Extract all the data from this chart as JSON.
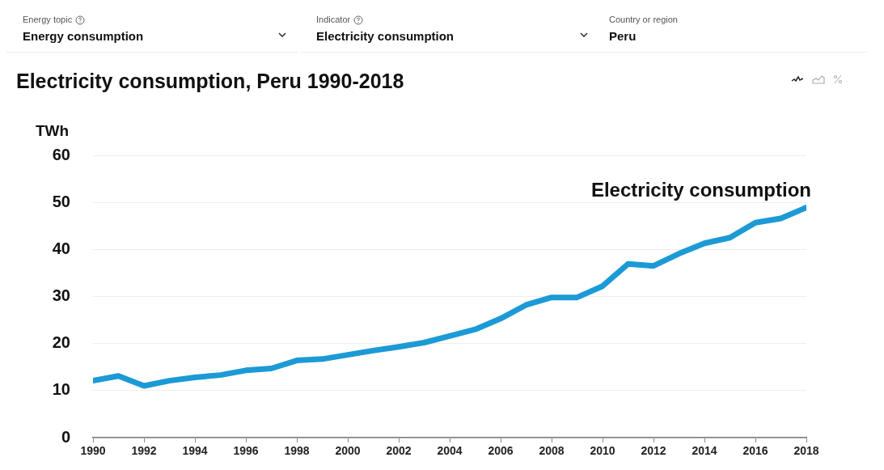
{
  "chart_data": {
    "type": "line",
    "title": "Electricity consumption, Peru 1990-2018",
    "ylabel": "TWh",
    "annotations": [
      "Energy topic",
      "Energy consumption",
      "Indicator",
      "Electricity consumption",
      "Country or region",
      "Peru"
    ],
    "x": [
      1990,
      1991,
      1992,
      1993,
      1994,
      1995,
      1996,
      1997,
      1998,
      1999,
      2000,
      2001,
      2002,
      2003,
      2004,
      2005,
      2006,
      2007,
      2008,
      2009,
      2010,
      2011,
      2012,
      2013,
      2014,
      2015,
      2016,
      2017,
      2018
    ],
    "series": [
      {
        "name": "Electricity consumption",
        "color": "#1c9ad6",
        "values": [
          12.1,
          13.1,
          11.0,
          12.1,
          12.8,
          13.3,
          14.3,
          14.7,
          16.4,
          16.7,
          17.6,
          18.5,
          19.3,
          20.2,
          21.6,
          23.0,
          25.3,
          28.2,
          29.8,
          29.8,
          32.2,
          36.9,
          36.5,
          39.1,
          41.3,
          42.5,
          45.7,
          46.6,
          48.9
        ]
      }
    ],
    "xlim": [
      1990,
      2018
    ],
    "xticks": [
      1990,
      1992,
      1994,
      1996,
      1998,
      2000,
      2002,
      2004,
      2006,
      2008,
      2010,
      2012,
      2014,
      2016,
      2018
    ],
    "ylim": [
      0,
      60
    ],
    "yticks": [
      0,
      10,
      20,
      30,
      40,
      50,
      60
    ],
    "grid": "y",
    "legend": false,
    "line_style": "solid"
  }
}
